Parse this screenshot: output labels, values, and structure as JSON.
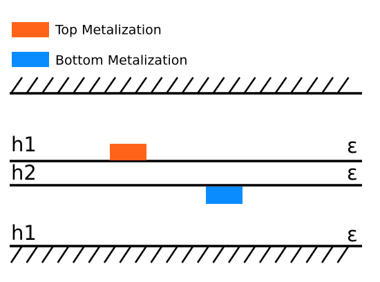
{
  "legend": [
    {
      "label": "Top Metalization",
      "color": "#ff6319"
    },
    {
      "label": "Bottom Metalization",
      "color": "#0a8cff"
    }
  ],
  "layers": [
    {
      "label": "h1",
      "permittivity": "ε"
    },
    {
      "label": "h2",
      "permittivity": "ε"
    },
    {
      "label": "h1",
      "permittivity": "ε"
    }
  ]
}
